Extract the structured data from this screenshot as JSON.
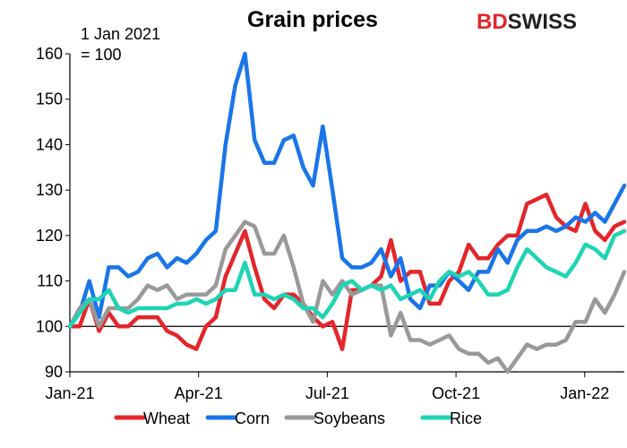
{
  "chart_data": {
    "type": "line",
    "title": "Grain prices",
    "annotation": [
      "1 Jan 2021",
      "= 100"
    ],
    "logo": {
      "part1": "BD",
      "part2": "SWISS"
    },
    "xlim": [
      0,
      56
    ],
    "ylim": [
      90,
      160
    ],
    "y_ticks": [
      90,
      100,
      110,
      120,
      130,
      140,
      150,
      160
    ],
    "x_ticks": [
      {
        "x": 0,
        "label": "Jan-21"
      },
      {
        "x": 13,
        "label": "Apr-21"
      },
      {
        "x": 26,
        "label": "Jul-21"
      },
      {
        "x": 39,
        "label": "Oct-21"
      },
      {
        "x": 52,
        "label": "Jan-22"
      }
    ],
    "reference_line": 100,
    "grid": false,
    "legend_position": "bottom",
    "series": [
      {
        "name": "Wheat",
        "color": "#e3262b",
        "values": [
          100,
          100,
          106,
          99,
          103,
          100,
          100,
          102,
          102,
          102,
          99,
          98,
          96,
          95,
          100,
          102,
          111,
          116,
          121,
          113,
          106,
          104,
          107,
          107,
          105,
          102,
          100,
          101,
          95,
          108,
          108,
          109,
          111,
          119,
          110,
          112,
          112,
          105,
          105,
          110,
          112,
          118,
          115,
          115,
          118,
          120,
          120,
          127,
          128,
          129,
          124,
          122,
          121,
          127,
          121,
          119,
          122,
          123
        ]
      },
      {
        "name": "Corn",
        "color": "#1a75e8",
        "values": [
          100,
          103,
          110,
          102,
          113,
          113,
          111,
          112,
          115,
          116,
          113,
          115,
          114,
          116,
          119,
          121,
          140,
          153,
          160,
          141,
          136,
          136,
          141,
          142,
          135,
          131,
          144,
          130,
          115,
          113,
          113,
          114,
          117,
          111,
          115,
          106,
          104,
          109,
          109,
          112,
          110,
          108,
          112,
          112,
          117,
          114,
          119,
          121,
          121,
          122,
          121,
          122,
          124,
          123,
          125,
          123,
          127,
          131
        ]
      },
      {
        "name": "Soybeans",
        "color": "#999999",
        "values": [
          100,
          104,
          106,
          100,
          104,
          104,
          104,
          106,
          109,
          108,
          109,
          106,
          107,
          107,
          107,
          109,
          117,
          120,
          123,
          122,
          116,
          116,
          120,
          113,
          105,
          101,
          110,
          107,
          110,
          107,
          108,
          109,
          109,
          98,
          103,
          97,
          97,
          96,
          97,
          98,
          95,
          94,
          94,
          92,
          93,
          90,
          93,
          96,
          95,
          96,
          96,
          97,
          101,
          101,
          106,
          103,
          107,
          112
        ]
      },
      {
        "name": "Rice",
        "color": "#1ed4b3",
        "values": [
          100,
          103,
          106,
          106,
          108,
          104,
          103,
          104,
          104,
          104,
          104,
          105,
          105,
          106,
          105,
          106,
          108,
          108,
          114,
          107,
          107,
          106,
          107,
          106,
          104,
          104,
          102,
          105,
          109,
          110,
          108,
          109,
          108,
          109,
          106,
          107,
          108,
          106,
          110,
          112,
          111,
          112,
          110,
          107,
          107,
          108,
          113,
          117,
          115,
          113,
          112,
          111,
          114,
          118,
          117,
          115,
          120,
          121
        ]
      }
    ]
  }
}
